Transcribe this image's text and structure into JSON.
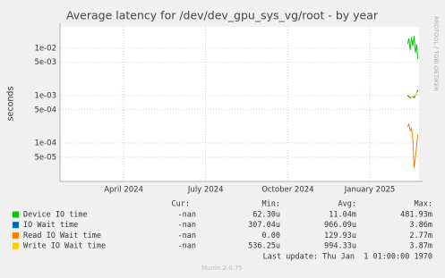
{
  "chart_data": {
    "type": "line",
    "title": "Average latency for /dev/dev_gpu_sys_vg/root - by year",
    "y_label": "seconds",
    "side_label": "RRDTOOL / TOBI OETIKER",
    "log_scale": true,
    "grid": true,
    "ylim": [
      1.55e-05,
      0.028
    ],
    "yticks": [
      {
        "value": 0.01,
        "label": "1e-02"
      },
      {
        "value": 0.005,
        "label": "5e-03"
      },
      {
        "value": 0.001,
        "label": "1e-03"
      },
      {
        "value": 0.0005,
        "label": "5e-04"
      },
      {
        "value": 0.0001,
        "label": "1e-04"
      },
      {
        "value": 5e-05,
        "label": "5e-05"
      }
    ],
    "xlim": [
      2024.056,
      2025.15
    ],
    "xticks": [
      {
        "value": 2024.25,
        "label": "April 2024"
      },
      {
        "value": 2024.5,
        "label": "July 2024"
      },
      {
        "value": 2024.75,
        "label": "October 2024"
      },
      {
        "value": 2025.0,
        "label": "January 2025"
      }
    ],
    "x": [
      2025.115,
      2025.119,
      2025.123,
      2025.127,
      2025.131,
      2025.135,
      2025.139,
      2025.143,
      2025.146
    ],
    "series": [
      {
        "name": "Device IO time",
        "color": "#00cc00",
        "values": [
          0.012,
          0.016,
          0.009,
          0.017,
          0.011,
          0.018,
          0.008,
          0.012,
          0.006
        ]
      },
      {
        "name": "IO Wait time",
        "color": "#0066b3",
        "values": [
          0.001,
          0.00095,
          0.0009,
          0.00092,
          0.00095,
          0.0009,
          0.001,
          0.0011,
          0.0013
        ]
      },
      {
        "name": "Read IO Wait time",
        "color": "#ff8000",
        "values": [
          0.00022,
          0.00025,
          0.00018,
          0.0002,
          0.00012,
          3e-05,
          5e-05,
          9e-05,
          0.00015
        ]
      },
      {
        "name": "Write IO Wait time",
        "color": "#ffcc00",
        "values": [
          null,
          null,
          0.00095,
          0.0009,
          0.00095,
          0.001,
          0.001,
          0.0011,
          0.0012
        ]
      }
    ]
  },
  "legend_table": {
    "headers": [
      "Cur:",
      "Min:",
      "Avg:",
      "Max:"
    ],
    "rows": [
      [
        "-nan",
        "62.30u",
        "11.04m",
        "481.93m"
      ],
      [
        "-nan",
        "307.04u",
        "966.09u",
        "3.86m"
      ],
      [
        "-nan",
        "0.00",
        "129.93u",
        "2.77m"
      ],
      [
        "-nan",
        "536.25u",
        "994.33u",
        "3.87m"
      ]
    ]
  },
  "last_update": "Last update: Thu Jan  1 01:00:00 1970",
  "footer": "Munin 2.0.75"
}
